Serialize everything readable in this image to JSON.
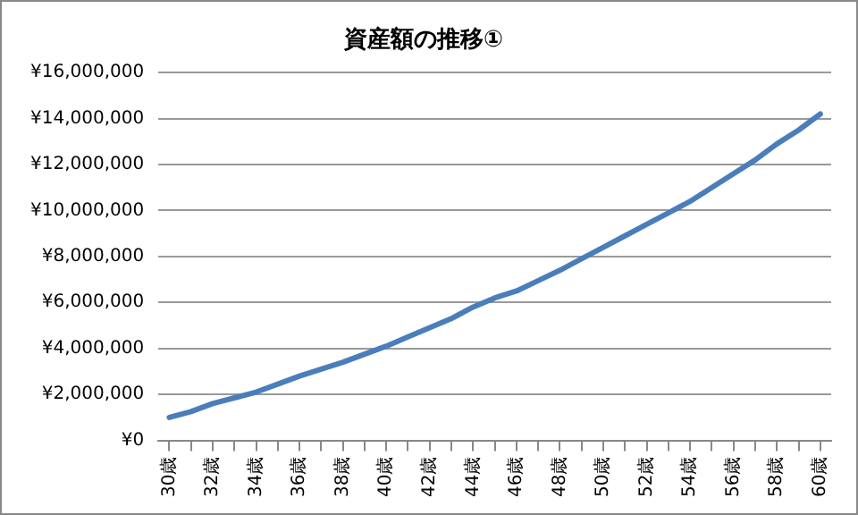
{
  "chart_data": {
    "type": "line",
    "title": "資産額の推移①",
    "categories": [
      "30歳",
      null,
      "32歳",
      null,
      "34歳",
      null,
      "36歳",
      null,
      "38歳",
      null,
      "40歳",
      null,
      "42歳",
      null,
      "44歳",
      null,
      "46歳",
      null,
      "48歳",
      null,
      "50歳",
      null,
      "52歳",
      null,
      "54歳",
      null,
      "56歳",
      null,
      "58歳",
      null,
      "60歳"
    ],
    "series": [
      {
        "color": "#4a7ebb",
        "values": [
          1000000,
          1250000,
          1600000,
          1850000,
          2100000,
          2450000,
          2800000,
          3100000,
          3400000,
          3750000,
          4100000,
          4500000,
          4900000,
          5300000,
          5800000,
          6200000,
          6500000,
          6950000,
          7400000,
          7900000,
          8400000,
          8900000,
          9400000,
          9900000,
          10400000,
          11000000,
          11600000,
          12200000,
          12900000,
          13500000,
          14200000
        ]
      }
    ],
    "ylim": [
      0,
      16000000
    ],
    "yticks": [
      {
        "value": 0,
        "label": "¥0"
      },
      {
        "value": 2000000,
        "label": "¥2,000,000"
      },
      {
        "value": 4000000,
        "label": "¥4,000,000"
      },
      {
        "value": 6000000,
        "label": "¥6,000,000"
      },
      {
        "value": 8000000,
        "label": "¥8,000,000"
      },
      {
        "value": 10000000,
        "label": "¥10,000,000"
      },
      {
        "value": 12000000,
        "label": "¥12,000,000"
      },
      {
        "value": 14000000,
        "label": "¥14,000,000"
      },
      {
        "value": 16000000,
        "label": "¥16,000,000"
      }
    ],
    "grid": "y",
    "legend": false,
    "marker": "none",
    "line_style": "solid"
  }
}
